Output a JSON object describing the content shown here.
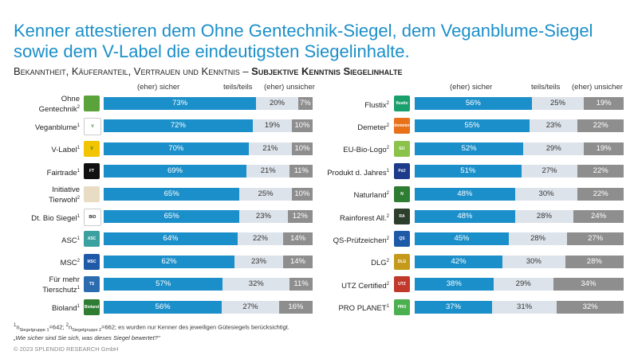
{
  "title": "Kenner attestieren dem Ohne Gentechnik-Siegel, dem Veganblume-Siegel sowie dem V-Label die eindeutigsten Siegelinhalte.",
  "subtitle_normal": "Bekanntheit, Käuferanteil, Vertrauen und Kenntnis – ",
  "subtitle_bold": "Subjektive Kenntnis Siegelinhalte",
  "legend": {
    "sicher": "(eher) sicher",
    "teils": "teils/teils",
    "unsicher": "(eher) unsicher"
  },
  "colors": {
    "sicher": "#1b8fc9",
    "teils": "#dde3ea",
    "unsicher": "#8e8e8e"
  },
  "chart_data": [
    {
      "type": "bar",
      "stacked": true,
      "orientation": "horizontal",
      "categories": [
        "Ohne Gentechnik",
        "Veganblume",
        "V-Label",
        "Fairtrade",
        "Initiative Tierwohl",
        "Dt. Bio Siegel",
        "ASC",
        "MSC",
        "Für mehr Tierschutz",
        "Bioland"
      ],
      "category_notes": [
        "2",
        "1",
        "1",
        "1",
        "2",
        "1",
        "1",
        "2",
        "1",
        "1"
      ],
      "series": [
        {
          "name": "(eher) sicher",
          "values": [
            73,
            72,
            70,
            69,
            65,
            65,
            64,
            62,
            57,
            56
          ]
        },
        {
          "name": "teils/teils",
          "values": [
            20,
            19,
            21,
            21,
            25,
            23,
            22,
            23,
            32,
            27
          ]
        },
        {
          "name": "(eher) unsicher",
          "values": [
            7,
            10,
            10,
            11,
            10,
            12,
            14,
            14,
            11,
            16
          ]
        }
      ],
      "unit": "%"
    },
    {
      "type": "bar",
      "stacked": true,
      "orientation": "horizontal",
      "categories": [
        "Flustix",
        "Demeter",
        "EU-Bio-Logo",
        "Produkt d. Jahres",
        "Naturland",
        "Rainforest All.",
        "QS-Prüfzeichen",
        "DLG",
        "UTZ Certified",
        "PRO PLANET"
      ],
      "category_notes": [
        "2",
        "2",
        "2",
        "1",
        "2",
        "2",
        "2",
        "2",
        "2",
        "1"
      ],
      "series": [
        {
          "name": "(eher) sicher",
          "values": [
            56,
            55,
            52,
            51,
            48,
            48,
            45,
            42,
            38,
            37
          ]
        },
        {
          "name": "teils/teils",
          "values": [
            25,
            23,
            29,
            27,
            30,
            28,
            28,
            30,
            29,
            31
          ]
        },
        {
          "name": "(eher) unsicher",
          "values": [
            19,
            22,
            19,
            22,
            22,
            24,
            27,
            28,
            34,
            32
          ]
        }
      ],
      "unit": "%"
    }
  ],
  "logos": [
    [
      {
        "text": "",
        "bg": "#5aa33a"
      },
      {
        "text": "V",
        "bg": "#ffffff",
        "fg": "#3d8a2e"
      },
      {
        "text": "V",
        "bg": "#f2c500",
        "fg": "#1a6e2e"
      },
      {
        "text": "FT",
        "bg": "#111111"
      },
      {
        "text": "",
        "bg": "#e8dcc4"
      },
      {
        "text": "BIO",
        "bg": "#ffffff",
        "fg": "#222"
      },
      {
        "text": "ASC",
        "bg": "#3aa0a0"
      },
      {
        "text": "MSC",
        "bg": "#1e5aa8"
      },
      {
        "text": "TS",
        "bg": "#2b6cb0"
      },
      {
        "text": "Bioland",
        "bg": "#2e7d32"
      }
    ],
    [
      {
        "text": "flustix",
        "bg": "#1aa06d"
      },
      {
        "text": "demeter",
        "bg": "#e8711a"
      },
      {
        "text": "EU",
        "bg": "#8bc34a"
      },
      {
        "text": "PdJ",
        "bg": "#1e3a8a"
      },
      {
        "text": "N",
        "bg": "#2e7d32"
      },
      {
        "text": "RA",
        "bg": "#2c3e2c"
      },
      {
        "text": "QS",
        "bg": "#1e5aa8"
      },
      {
        "text": "DLG",
        "bg": "#c59a1a"
      },
      {
        "text": "UTZ",
        "bg": "#c0392b"
      },
      {
        "text": "PRO",
        "bg": "#4caf50"
      }
    ]
  ],
  "footnote_line1_a": "1",
  "footnote_line1_b": "n",
  "footnote_line1_c": "Siegelgruppe 1",
  "footnote_line1_d": "=642; ",
  "footnote_line1_e": "2",
  "footnote_line1_f": "n",
  "footnote_line1_g": "Siegelgruppe 2",
  "footnote_line1_h": "=662; es wurden nur Kenner des jeweiligen Gütesiegels berücksichtigt.",
  "footnote_line2": "„Wie sicher sind Sie sich, was dieses Siegel bewertet?\"",
  "copyright": "© 2023 SPLENDID RESEARCH GmbH"
}
